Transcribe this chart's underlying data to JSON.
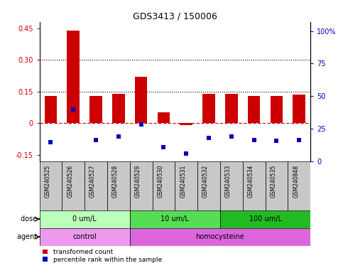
{
  "title": "GDS3413 / 150006",
  "samples": [
    "GSM240525",
    "GSM240526",
    "GSM240527",
    "GSM240528",
    "GSM240529",
    "GSM240530",
    "GSM240531",
    "GSM240532",
    "GSM240533",
    "GSM240534",
    "GSM240535",
    "GSM240848"
  ],
  "red_values": [
    0.13,
    0.44,
    0.13,
    0.14,
    0.22,
    0.05,
    -0.01,
    0.14,
    0.14,
    0.13,
    0.13,
    0.135
  ],
  "blue_values": [
    -0.09,
    0.065,
    -0.08,
    -0.065,
    -0.005,
    -0.115,
    -0.145,
    -0.07,
    -0.065,
    -0.08,
    -0.085,
    -0.08
  ],
  "ylim_left": [
    -0.18,
    0.48
  ],
  "ylim_right": [
    0,
    107
  ],
  "yticks_left": [
    -0.15,
    0.0,
    0.15,
    0.3,
    0.45
  ],
  "ytick_labels_left": [
    "-0.15",
    "0",
    "0.15",
    "0.30",
    "0.45"
  ],
  "yticks_right": [
    0,
    25,
    50,
    75,
    100
  ],
  "ytick_labels_right": [
    "0",
    "25",
    "50",
    "75",
    "100%"
  ],
  "hlines": [
    0.15,
    0.3
  ],
  "red_color": "#cc0000",
  "blue_color": "#0000bb",
  "bar_width": 0.55,
  "dose_groups": [
    {
      "label": "0 um/L",
      "start": 0,
      "end": 4,
      "color": "#bbffbb"
    },
    {
      "label": "10 um/L",
      "start": 4,
      "end": 8,
      "color": "#55dd55"
    },
    {
      "label": "100 um/L",
      "start": 8,
      "end": 12,
      "color": "#22bb22"
    }
  ],
  "agent_groups": [
    {
      "label": "control",
      "start": 0,
      "end": 4,
      "color": "#ee99ee"
    },
    {
      "label": "homocysteine",
      "start": 4,
      "end": 12,
      "color": "#dd66dd"
    }
  ],
  "dose_label": "dose",
  "agent_label": "agent",
  "legend_red": "transformed count",
  "legend_blue": "percentile rank within the sample",
  "grid_color": "black",
  "zero_line_color": "#cc0000",
  "label_bg_color": "#c8c8c8"
}
